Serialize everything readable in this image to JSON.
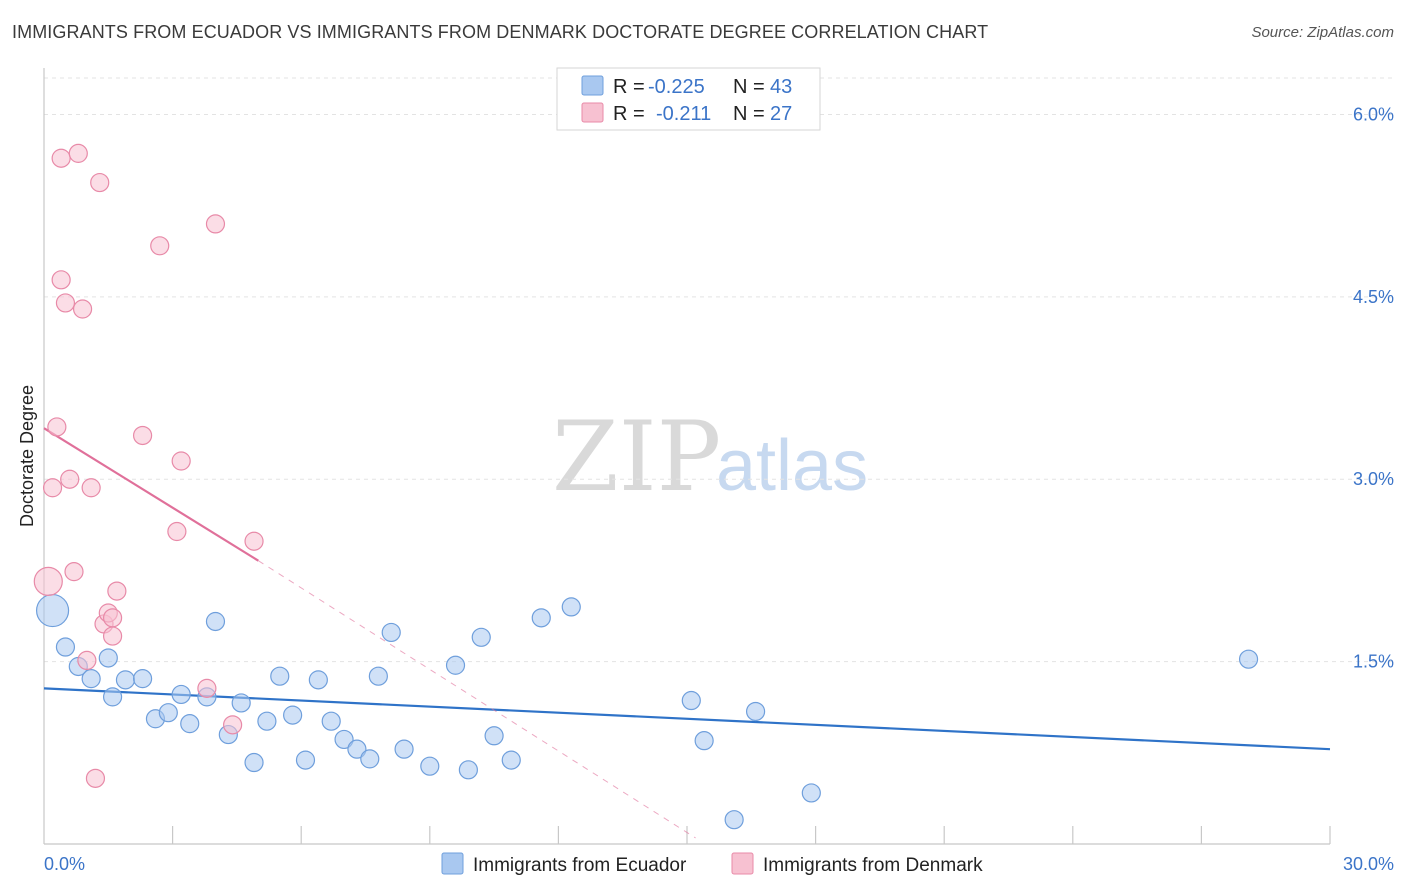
{
  "chart_data": {
    "type": "scatter",
    "title": "IMMIGRANTS FROM ECUADOR VS IMMIGRANTS FROM DENMARK DOCTORATE DEGREE CORRELATION CHART",
    "source": "Source: ZipAtlas.com",
    "xlabel": "",
    "ylabel": "Doctorate Degree",
    "xlim": [
      0,
      30
    ],
    "ylim": [
      0,
      6.3
    ],
    "x_tick_labels": {
      "min": "0.0%",
      "max": "30.0%"
    },
    "y_ticks": [
      {
        "value": 1.5,
        "label": "1.5%"
      },
      {
        "value": 3.0,
        "label": "3.0%"
      },
      {
        "value": 4.5,
        "label": "4.5%"
      },
      {
        "value": 6.0,
        "label": "6.0%"
      }
    ],
    "watermark": {
      "part1": "ZIP",
      "part2": "atlas"
    },
    "legend": {
      "r_label": "R =",
      "n_label": "N =",
      "entries": [
        {
          "r": "-0.225",
          "n": "43"
        },
        {
          "r": "-0.211",
          "n": "27"
        }
      ]
    },
    "series": [
      {
        "name": "Immigrants from Ecuador",
        "color": "#a9c8f0",
        "stroke": "#6f9fdc",
        "line_color": "#2f73c8",
        "trend": {
          "x": [
            0,
            30
          ],
          "y": [
            1.28,
            0.78
          ]
        },
        "points": [
          [
            0.2,
            1.92,
            16
          ],
          [
            0.5,
            1.62,
            9
          ],
          [
            0.8,
            1.46,
            9
          ],
          [
            1.1,
            1.36,
            9
          ],
          [
            1.5,
            1.53,
            9
          ],
          [
            1.6,
            1.21,
            9
          ],
          [
            1.9,
            1.35,
            9
          ],
          [
            2.3,
            1.36,
            9
          ],
          [
            2.6,
            1.03,
            9
          ],
          [
            2.9,
            1.08,
            9
          ],
          [
            3.2,
            1.23,
            9
          ],
          [
            3.4,
            0.99,
            9
          ],
          [
            3.8,
            1.21,
            9
          ],
          [
            4.0,
            1.83,
            9
          ],
          [
            4.3,
            0.9,
            9
          ],
          [
            4.6,
            1.16,
            9
          ],
          [
            4.9,
            0.67,
            9
          ],
          [
            5.2,
            1.01,
            9
          ],
          [
            5.5,
            1.38,
            9
          ],
          [
            5.8,
            1.06,
            9
          ],
          [
            6.1,
            0.69,
            9
          ],
          [
            6.4,
            1.35,
            9
          ],
          [
            6.7,
            1.01,
            9
          ],
          [
            7.0,
            0.86,
            9
          ],
          [
            7.3,
            0.78,
            9
          ],
          [
            7.6,
            0.7,
            9
          ],
          [
            7.8,
            1.38,
            9
          ],
          [
            8.1,
            1.74,
            9
          ],
          [
            8.4,
            0.78,
            9
          ],
          [
            9.0,
            0.64,
            9
          ],
          [
            9.6,
            1.47,
            9
          ],
          [
            9.9,
            0.61,
            9
          ],
          [
            10.2,
            1.7,
            9
          ],
          [
            10.5,
            0.89,
            9
          ],
          [
            10.9,
            0.69,
            9
          ],
          [
            11.6,
            1.86,
            9
          ],
          [
            12.3,
            1.95,
            9
          ],
          [
            15.1,
            1.18,
            9
          ],
          [
            15.4,
            0.85,
            9
          ],
          [
            16.1,
            0.2,
            9
          ],
          [
            16.6,
            1.09,
            9
          ],
          [
            17.9,
            0.42,
            9
          ],
          [
            28.1,
            1.52,
            9
          ]
        ]
      },
      {
        "name": "Immigrants from Denmark",
        "color": "#f7c1d1",
        "stroke": "#e88aa8",
        "line_color": "#e0709a",
        "trend": {
          "x": [
            0,
            5
          ],
          "y": [
            3.42,
            2.33
          ]
        },
        "trend_dashed": {
          "x": [
            5,
            15.2
          ],
          "y": [
            2.33,
            0.05
          ]
        },
        "points": [
          [
            0.1,
            2.16,
            14
          ],
          [
            0.2,
            2.93,
            9
          ],
          [
            0.3,
            3.43,
            9
          ],
          [
            0.4,
            5.64,
            9
          ],
          [
            0.4,
            4.64,
            9
          ],
          [
            0.5,
            4.45,
            9
          ],
          [
            0.6,
            3.0,
            9
          ],
          [
            0.7,
            2.24,
            9
          ],
          [
            0.8,
            5.68,
            9
          ],
          [
            0.9,
            4.4,
            9
          ],
          [
            1.0,
            1.51,
            9
          ],
          [
            1.1,
            2.93,
            9
          ],
          [
            1.2,
            0.54,
            9
          ],
          [
            1.3,
            5.44,
            9
          ],
          [
            1.4,
            1.81,
            9
          ],
          [
            1.5,
            1.9,
            9
          ],
          [
            1.6,
            1.86,
            9
          ],
          [
            1.6,
            1.71,
            9
          ],
          [
            1.7,
            2.08,
            9
          ],
          [
            2.3,
            3.36,
            9
          ],
          [
            2.7,
            4.92,
            9
          ],
          [
            3.1,
            2.57,
            9
          ],
          [
            3.2,
            3.15,
            9
          ],
          [
            3.8,
            1.28,
            9
          ],
          [
            4.0,
            5.1,
            9
          ],
          [
            4.4,
            0.98,
            9
          ],
          [
            4.9,
            2.49,
            9
          ]
        ]
      }
    ]
  }
}
